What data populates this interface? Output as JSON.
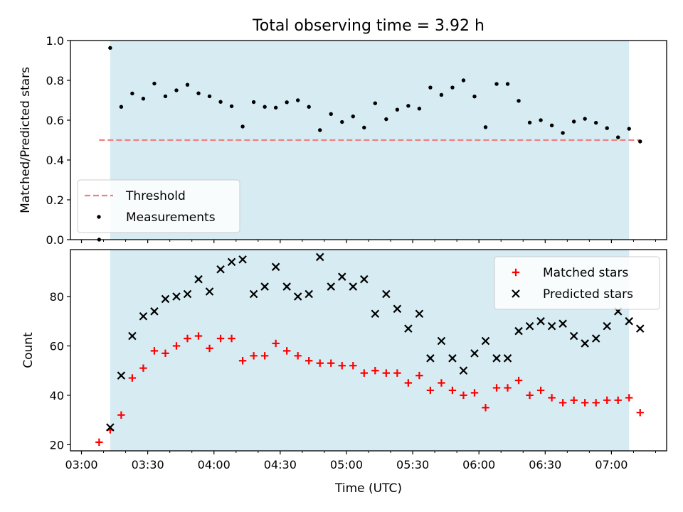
{
  "figure": {
    "title": "Total observing time = 3.92 h",
    "xlabel": "Time (UTC)",
    "x_ticks": [
      "03:00",
      "03:30",
      "04:00",
      "04:30",
      "05:00",
      "05:30",
      "06:00",
      "06:30",
      "07:00"
    ]
  },
  "colors": {
    "shade": "#add8e6",
    "threshold": "#f08080",
    "measurements": "#000000",
    "matched": "#ff0000",
    "predicted": "#000000"
  },
  "chart_data": [
    {
      "type": "scatter",
      "name": "ratio",
      "ylabel": "Matched/Predicted stars",
      "xlim": [
        "02:55",
        "07:25"
      ],
      "ylim": [
        0,
        1.0
      ],
      "y_ticks": [
        "0.0",
        "0.2",
        "0.4",
        "0.6",
        "0.8",
        "1.0"
      ],
      "shaded_x": [
        "03:13",
        "07:08"
      ],
      "threshold": {
        "label": "Threshold",
        "value": 0.5,
        "x": [
          "03:08",
          "07:13"
        ]
      },
      "legend": {
        "placement": "lower-left",
        "entries": [
          "Threshold",
          "Measurements"
        ]
      },
      "series": [
        {
          "name": "Measurements",
          "x": [
            "03:08",
            "03:13",
            "03:18",
            "03:23",
            "03:28",
            "03:33",
            "03:38",
            "03:43",
            "03:48",
            "03:53",
            "03:58",
            "04:03",
            "04:08",
            "04:13",
            "04:18",
            "04:23",
            "04:28",
            "04:33",
            "04:38",
            "04:43",
            "04:48",
            "04:53",
            "04:58",
            "05:03",
            "05:08",
            "05:13",
            "05:18",
            "05:23",
            "05:28",
            "05:33",
            "05:38",
            "05:43",
            "05:48",
            "05:53",
            "05:58",
            "06:03",
            "06:08",
            "06:13",
            "06:18",
            "06:23",
            "06:28",
            "06:33",
            "06:38",
            "06:43",
            "06:48",
            "06:53",
            "06:58",
            "07:03",
            "07:08",
            "07:13"
          ],
          "y": [
            0.0,
            0.963,
            0.667,
            0.734,
            0.708,
            0.784,
            0.72,
            0.75,
            0.778,
            0.735,
            0.72,
            0.692,
            0.67,
            0.568,
            0.691,
            0.667,
            0.663,
            0.69,
            0.7,
            0.667,
            0.55,
            0.631,
            0.591,
            0.619,
            0.563,
            0.685,
            0.605,
            0.653,
            0.672,
            0.658,
            0.764,
            0.727,
            0.764,
            0.8,
            0.719,
            0.565,
            0.782,
            0.782,
            0.697,
            0.588,
            0.6,
            0.574,
            0.536,
            0.593,
            0.607,
            0.587,
            0.56,
            0.514,
            0.557,
            0.493
          ]
        }
      ]
    },
    {
      "type": "scatter",
      "name": "counts",
      "ylabel": "Count",
      "xlim": [
        "02:55",
        "07:25"
      ],
      "ylim": [
        17.5,
        99
      ],
      "y_ticks": [
        "20",
        "40",
        "60",
        "80"
      ],
      "shaded_x": [
        "03:13",
        "07:08"
      ],
      "legend": {
        "placement": "upper-right",
        "entries": [
          "Matched stars",
          "Predicted stars"
        ]
      },
      "series": [
        {
          "name": "Matched stars",
          "x": [
            "03:08",
            "03:13",
            "03:18",
            "03:23",
            "03:28",
            "03:33",
            "03:38",
            "03:43",
            "03:48",
            "03:53",
            "03:58",
            "04:03",
            "04:08",
            "04:13",
            "04:18",
            "04:23",
            "04:28",
            "04:33",
            "04:38",
            "04:43",
            "04:48",
            "04:53",
            "04:58",
            "05:03",
            "05:08",
            "05:13",
            "05:18",
            "05:23",
            "05:28",
            "05:33",
            "05:38",
            "05:43",
            "05:48",
            "05:53",
            "05:58",
            "06:03",
            "06:08",
            "06:13",
            "06:18",
            "06:23",
            "06:28",
            "06:33",
            "06:38",
            "06:43",
            "06:48",
            "06:53",
            "06:58",
            "07:03",
            "07:08",
            "07:13"
          ],
          "y": [
            21,
            26,
            32,
            47,
            51,
            58,
            57,
            60,
            63,
            64,
            59,
            63,
            63,
            54,
            56,
            56,
            61,
            58,
            56,
            54,
            53,
            53,
            52,
            52,
            49,
            50,
            49,
            49,
            45,
            48,
            42,
            45,
            42,
            40,
            41,
            35,
            43,
            43,
            46,
            40,
            42,
            39,
            37,
            38,
            37,
            37,
            38,
            38,
            39,
            33
          ]
        },
        {
          "name": "Predicted stars",
          "x": [
            "03:13",
            "03:18",
            "03:23",
            "03:28",
            "03:33",
            "03:38",
            "03:43",
            "03:48",
            "03:53",
            "03:58",
            "04:03",
            "04:08",
            "04:13",
            "04:18",
            "04:23",
            "04:28",
            "04:33",
            "04:38",
            "04:43",
            "04:48",
            "04:53",
            "04:58",
            "05:03",
            "05:08",
            "05:13",
            "05:18",
            "05:23",
            "05:28",
            "05:33",
            "05:38",
            "05:43",
            "05:48",
            "05:53",
            "05:58",
            "06:03",
            "06:08",
            "06:13",
            "06:18",
            "06:23",
            "06:28",
            "06:33",
            "06:38",
            "06:43",
            "06:48",
            "06:53",
            "06:58",
            "07:03",
            "07:08",
            "07:13"
          ],
          "y": [
            27,
            48,
            64,
            72,
            74,
            79,
            80,
            81,
            87,
            82,
            91,
            94,
            95,
            81,
            84,
            92,
            84,
            80,
            81,
            96,
            84,
            88,
            84,
            87,
            73,
            81,
            75,
            67,
            73,
            55,
            62,
            55,
            50,
            57,
            62,
            55,
            55,
            66,
            68,
            70,
            68,
            69,
            64,
            61,
            63,
            68,
            74,
            70,
            67
          ]
        }
      ]
    }
  ]
}
